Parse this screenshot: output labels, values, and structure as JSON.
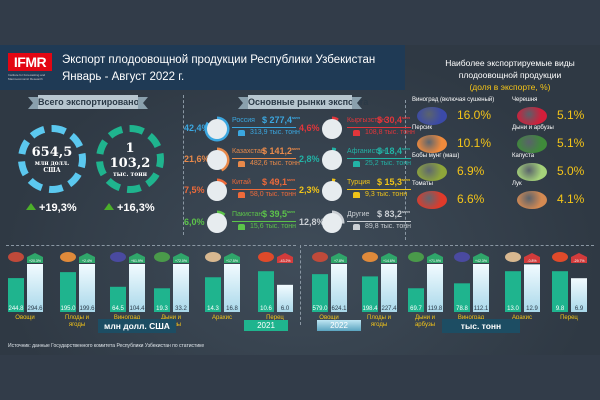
{
  "header": {
    "logo": "IFMR",
    "logo_subtitle": "Institute for Forecasting and Macroeconomic Research",
    "title_line1": "Экспорт плодоовощной продукции Республики Узбекистан",
    "title_line2": "Январь - Август 2022 г."
  },
  "totals": {
    "ribbon": "Всего экспортировано",
    "usd": {
      "value": "654,5",
      "unit_line1": "млн долл.",
      "unit_line2": "США",
      "growth": "+19,3%",
      "color": "#5bc8ef"
    },
    "tons": {
      "value": "1 103,2",
      "unit_line1": "тыс. тонн",
      "growth": "+16,3%",
      "color": "#1fb48e"
    }
  },
  "markets": {
    "ribbon": "Основные рынки экспорта",
    "items": [
      {
        "share": "42,4%",
        "share_value": 42.4,
        "name": "Россия",
        "usd": "$ 277,4",
        "usd_unit": "млн",
        "tons": "313,9 тыс. тонн",
        "color": "#3ba7e0"
      },
      {
        "share": "21,6%",
        "share_value": 21.6,
        "name": "Казахстан",
        "usd": "$ 141,2",
        "usd_unit": "млн",
        "tons": "482,6 тыс. тонн",
        "color": "#e8894a"
      },
      {
        "share": "7,5%",
        "share_value": 7.5,
        "name": "Китай",
        "usd": "$ 49,1",
        "usd_unit": "млн",
        "tons": "58,0 тыс. тонн",
        "color": "#ee6a3a"
      },
      {
        "share": "6,0%",
        "share_value": 6.0,
        "name": "Пакистан",
        "usd": "$ 39,5",
        "usd_unit": "млн",
        "tons": "15,6 тыс. тонн",
        "color": "#5cc34a"
      },
      {
        "share": "4,6%",
        "share_value": 4.6,
        "name": "Кыргызстан",
        "usd": "$ 30,4",
        "usd_unit": "млн",
        "tons": "108,8 тыс. тонн",
        "color": "#e2363b"
      },
      {
        "share": "2,8%",
        "share_value": 2.8,
        "name": "Афганистан",
        "usd": "$ 18,4",
        "usd_unit": "млн",
        "tons": "25,2 тыс. тонн",
        "color": "#22b3a6"
      },
      {
        "share": "2,3%",
        "share_value": 2.3,
        "name": "Турция",
        "usd": "$ 15,3",
        "usd_unit": "млн",
        "tons": "9,3 тыс. тонн",
        "color": "#f0c419"
      },
      {
        "share": "12,8%",
        "share_value": 12.8,
        "name": "Другие",
        "usd": "$ 83,2",
        "usd_unit": "млн",
        "tons": "89,8 тыс. тонн",
        "color": "#c9ced3"
      }
    ]
  },
  "top_products": {
    "title_line1": "Наиболее экспортируемые виды",
    "title_line2": "плодоовощной продукции",
    "subtitle": "(доля в экспорте, %)",
    "items": [
      {
        "name": "Виноград (включая сушеный)",
        "pct": "16.0%",
        "color": "#3b4aa8"
      },
      {
        "name": "Персик",
        "pct": "10.1%",
        "color": "#f08a3c"
      },
      {
        "name": "Бобы мунг (маш)",
        "pct": "6.9%",
        "color": "#8ea63a"
      },
      {
        "name": "Томаты",
        "pct": "6.6%",
        "color": "#e03a2a"
      },
      {
        "name": "Черешня",
        "pct": "5.1%",
        "color": "#d21e3a"
      },
      {
        "name": "Дыни и арбузы",
        "pct": "5.1%",
        "color": "#3f8a3a"
      },
      {
        "name": "Капуста",
        "pct": "5.0%",
        "color": "#a6d37a"
      },
      {
        "name": "Лук",
        "pct": "4.1%",
        "color": "#d58a52"
      }
    ]
  },
  "chart_data": [
    {
      "type": "bar",
      "title": "млн долл. США",
      "categories": [
        "Овощи",
        "Плоды и ягоды",
        "Виноград",
        "Дыни и арбузы",
        "Арахис",
        "Перец"
      ],
      "series": [
        {
          "name": "2021",
          "values": [
            244.8,
            195.0,
            64.5,
            19.3,
            14.3,
            10.6
          ],
          "color": "#1fb48e"
        },
        {
          "name": "2022",
          "values": [
            294.6,
            199.6,
            104.4,
            33.2,
            16.8,
            6.0
          ],
          "color": "#d6eef7"
        }
      ],
      "value_labels_2021": [
        "244.8",
        "195.0",
        "64.5",
        "19.3",
        "14.3",
        "10.6"
      ],
      "value_labels_2022": [
        "294.6",
        "199.6",
        "104.4",
        "33.2",
        "16.8",
        "6.0"
      ],
      "change": [
        "+20.3%",
        "+2.4%",
        "+61.9%",
        "+72.0%",
        "+17.5%",
        "-43.2%"
      ],
      "unit": "млн долл. США"
    },
    {
      "type": "bar",
      "title": "тыс. тонн",
      "categories": [
        "Овощи",
        "Плоды и ягоды",
        "Дыни и арбузы",
        "Виноград",
        "Арахис",
        "Перец"
      ],
      "series": [
        {
          "name": "2021",
          "values": [
            579.0,
            198.4,
            69.7,
            78.8,
            13.0,
            9.8
          ],
          "color": "#1fb48e"
        },
        {
          "name": "2022",
          "values": [
            624.1,
            227.4,
            119.8,
            112.1,
            12.9,
            6.9
          ],
          "color": "#d6eef7"
        }
      ],
      "value_labels_2021": [
        "579.0",
        "198.4",
        "69.7",
        "78.8",
        "13.0",
        "9.8"
      ],
      "value_labels_2022": [
        "624.1",
        "227.4",
        "119.8",
        "112.1",
        "12.9",
        "6.9"
      ],
      "change": [
        "+7.8%",
        "+14.6%",
        "+71.9%",
        "+42.3%",
        "-0.8%",
        "-29.7%"
      ],
      "unit": "тыс. тонн"
    }
  ],
  "legend": {
    "year_2021": "2021",
    "year_2022": "2022"
  },
  "source": "Источник: данные Государственного комитета Республики Узбекистан по статистике"
}
